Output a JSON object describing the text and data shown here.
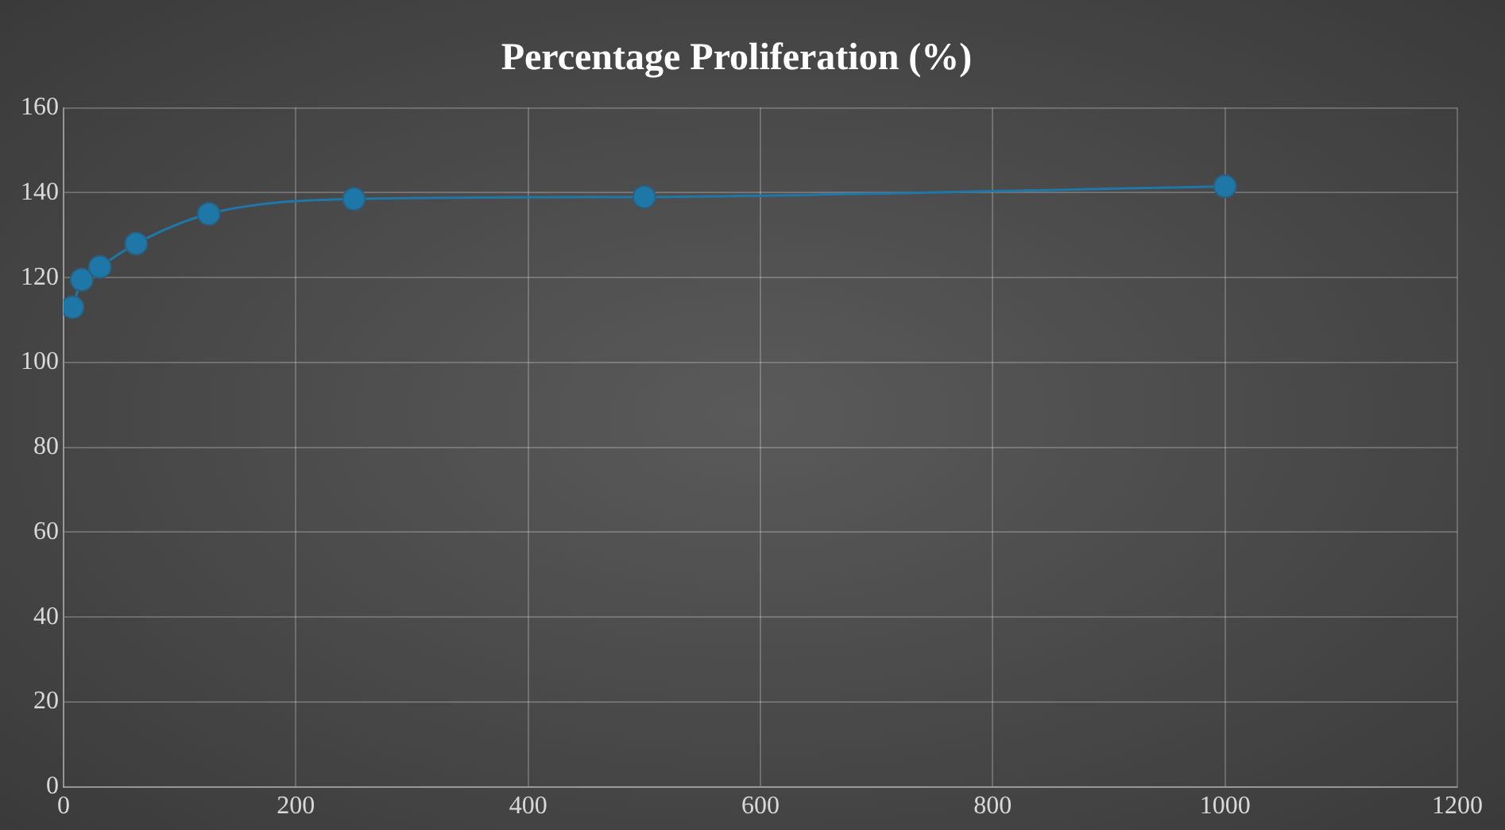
{
  "chart_data": {
    "type": "line",
    "title": "Percentage Proliferation (%)",
    "x": [
      7.8125,
      15.625,
      31.25,
      62.5,
      125,
      250,
      500,
      1000
    ],
    "series": [
      {
        "color": "#1f77a8",
        "values": [
          113,
          119.5,
          122.5,
          128,
          135,
          138.5,
          139,
          141.5
        ]
      }
    ],
    "xlim": [
      0,
      1200
    ],
    "xticks": [
      0,
      200,
      400,
      600,
      800,
      1000,
      1200
    ],
    "ylim": [
      0,
      160
    ],
    "yticks": [
      0,
      20,
      40,
      60,
      80,
      100,
      120,
      140,
      160
    ],
    "grid": true,
    "legend": false,
    "marker": "circle",
    "line_style": "solid"
  }
}
